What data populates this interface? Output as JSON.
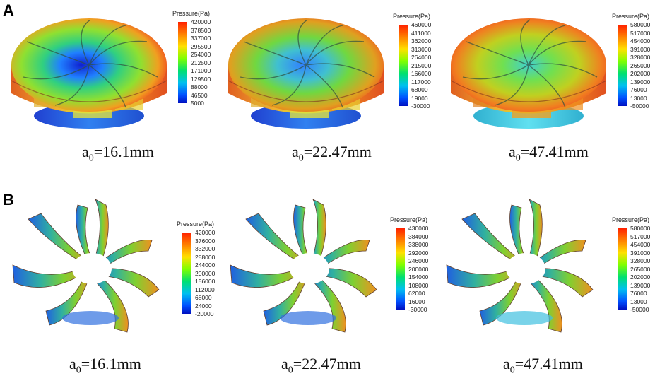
{
  "panels": [
    {
      "label": "A",
      "items": [
        {
          "caption_main": "a",
          "caption_sub": "0",
          "caption_value": "=16.1mm",
          "legend_title": "Pressure(Pa)",
          "legend_ticks": [
            "420000",
            "378500",
            "337000",
            "295500",
            "254000",
            "212500",
            "171000",
            "129500",
            "88000",
            "46500",
            "5000"
          ]
        },
        {
          "caption_main": "a",
          "caption_sub": "0",
          "caption_value": "=22.47mm",
          "legend_title": "Pressure(Pa)",
          "legend_ticks": [
            "460000",
            "411000",
            "362000",
            "313000",
            "264000",
            "215000",
            "166000",
            "117000",
            "68000",
            "19000",
            "-30000"
          ]
        },
        {
          "caption_main": "a",
          "caption_sub": "0",
          "caption_value": "=47.41mm",
          "legend_title": "Pressure(Pa)",
          "legend_ticks": [
            "580000",
            "517000",
            "454000",
            "391000",
            "328000",
            "265000",
            "202000",
            "139000",
            "76000",
            "13000",
            "-50000"
          ]
        }
      ]
    },
    {
      "label": "B",
      "items": [
        {
          "caption_main": "a",
          "caption_sub": "0",
          "caption_value": "=16.1mm",
          "legend_title": "Pressure(Pa)",
          "legend_ticks": [
            "420000",
            "376000",
            "332000",
            "288000",
            "244000",
            "200000",
            "156000",
            "112000",
            "68000",
            "24000",
            "-20000"
          ]
        },
        {
          "caption_main": "a",
          "caption_sub": "0",
          "caption_value": "=22.47mm",
          "legend_title": "Pressure(Pa)",
          "legend_ticks": [
            "430000",
            "384000",
            "338000",
            "292000",
            "246000",
            "200000",
            "154000",
            "108000",
            "62000",
            "16000",
            "-30000"
          ]
        },
        {
          "caption_main": "a",
          "caption_sub": "0",
          "caption_value": "=47.41mm",
          "legend_title": "Pressure(Pa)",
          "legend_ticks": [
            "580000",
            "517000",
            "454000",
            "391000",
            "328000",
            "265000",
            "202000",
            "139000",
            "76000",
            "13000",
            "-50000"
          ]
        }
      ]
    }
  ],
  "colors": {
    "scale": [
      "#ff2a00",
      "#ffa000",
      "#ffff00",
      "#80ff00",
      "#00e060",
      "#00c0ff",
      "#0040ff",
      "#0000c0"
    ]
  }
}
